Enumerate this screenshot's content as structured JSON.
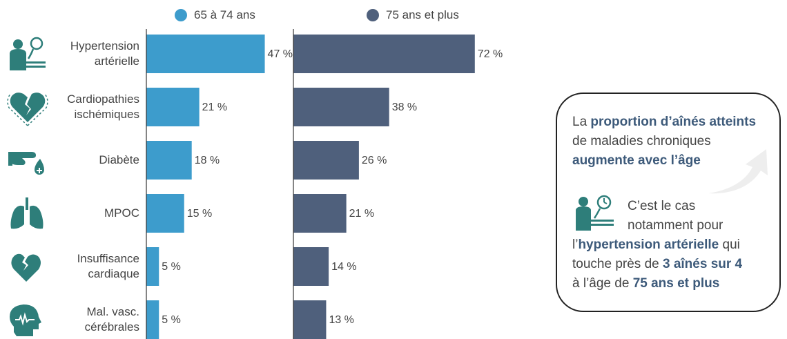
{
  "colors": {
    "series_65_74": "#3d9ccc",
    "series_75_plus": "#4f607c",
    "icon": "#2e7e7a",
    "callout_emphasis": "#3d5a7a",
    "axis": "#333333"
  },
  "chart_data": {
    "type": "bar",
    "orientation": "horizontal",
    "layout": "two side-by-side panels",
    "categories": [
      {
        "label": "Hypertension artérielle",
        "lines": [
          "Hypertension",
          "artérielle"
        ],
        "icon": "blood-pressure-icon"
      },
      {
        "label": "Cardiopathies ischémiques",
        "lines": [
          "Cardiopathies",
          "ischémiques"
        ],
        "icon": "broken-heart-icon"
      },
      {
        "label": "Diabète",
        "lines": [
          "Diabète"
        ],
        "icon": "glucose-finger-icon"
      },
      {
        "label": "MPOC",
        "lines": [
          "MPOC"
        ],
        "icon": "lungs-icon"
      },
      {
        "label": "Insuffisance cardiaque",
        "lines": [
          "Insuffisance",
          "cardiaque"
        ],
        "icon": "heart-icon"
      },
      {
        "label": "Mal. vasc. cérébrales",
        "lines": [
          "Mal. vasc.",
          "cérébrales"
        ],
        "icon": "brain-head-icon"
      }
    ],
    "series": [
      {
        "name": "65 à 74 ans",
        "values": [
          47,
          21,
          18,
          15,
          5,
          5
        ],
        "labels": [
          "47 %",
          "21 %",
          "18 %",
          "15 %",
          "5 %",
          "5 %"
        ]
      },
      {
        "name": "75 ans et plus",
        "values": [
          72,
          38,
          26,
          21,
          14,
          13
        ],
        "labels": [
          "72 %",
          "38 %",
          "26 %",
          "21 %",
          "14 %",
          "13 %"
        ]
      }
    ],
    "unit": "%",
    "grid": false,
    "legend_position": "top"
  },
  "callout": {
    "text_parts": [
      {
        "t": "La ",
        "b": false
      },
      {
        "t": "proportion d’aînés atteints",
        "b": true
      },
      {
        "t": " de maladies chroniques ",
        "b": false
      },
      {
        "t": "augmente avec l’âge",
        "b": true
      }
    ],
    "second_parts": [
      {
        "t": "C’est le cas notamment pour l’",
        "b": false
      },
      {
        "t": "hypertension artérielle",
        "b": true
      },
      {
        "t": " qui touche près de ",
        "b": false
      },
      {
        "t": "3 aînés sur 4",
        "b": true
      },
      {
        "t": " à l’âge de ",
        "b": false
      },
      {
        "t": "75 ans et plus",
        "b": true
      }
    ],
    "line1": [
      "La ",
      "proportion d’aînés atteints"
    ],
    "line2": "de maladies chroniques",
    "line3": "augmente avec l’âge",
    "line4": "C’est le cas",
    "line5": "notamment pour",
    "line6": [
      "l’",
      "hypertension artérielle",
      " qui"
    ],
    "line7": [
      "touche près de ",
      "3 aînés sur 4"
    ],
    "line8": [
      "à l’âge de ",
      "75 ans et plus"
    ],
    "icon": "blood-pressure-icon"
  }
}
